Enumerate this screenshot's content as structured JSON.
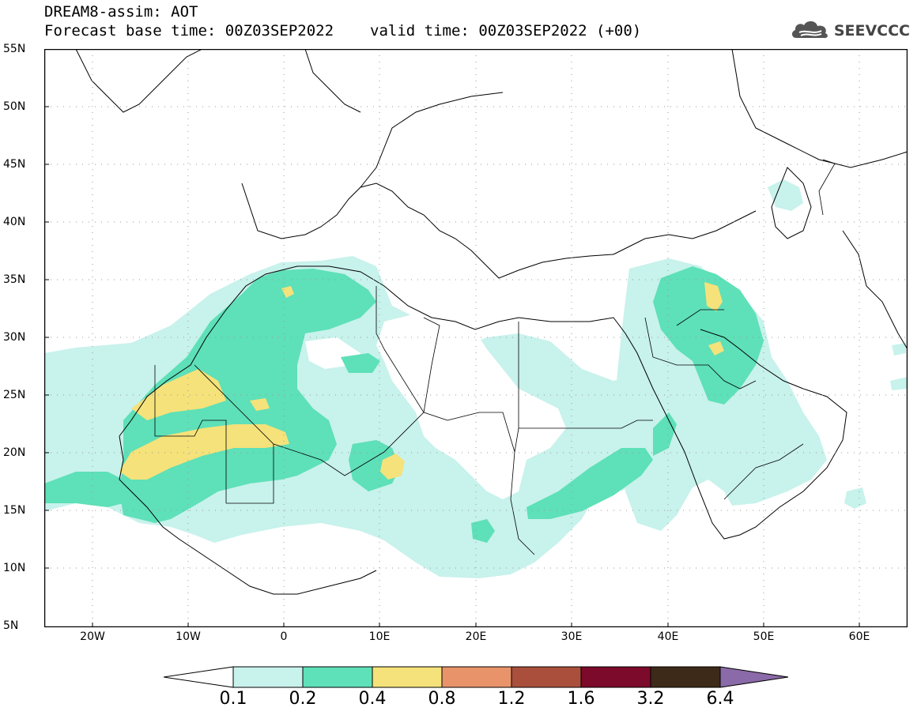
{
  "header": {
    "title": "DREAM8-assim: AOT",
    "base_time": "Forecast base time: 00Z03SEP2022",
    "valid_time": "valid time: 00Z03SEP2022 (+00)"
  },
  "logo": {
    "text": "SEEVCCC",
    "icon": "cloud-icon"
  },
  "axes": {
    "lat_ticks": [
      "55N",
      "50N",
      "45N",
      "40N",
      "35N",
      "30N",
      "25N",
      "20N",
      "15N",
      "10N",
      "5N"
    ],
    "lon_ticks": [
      "20W",
      "10W",
      "0",
      "10E",
      "20E",
      "30E",
      "40E",
      "50E",
      "60E"
    ],
    "lat_range": [
      5,
      55
    ],
    "lon_range": [
      -25,
      65
    ]
  },
  "colorbar": {
    "labels": [
      "0.1",
      "0.2",
      "0.4",
      "0.8",
      "1.2",
      "1.6",
      "3.2",
      "6.4"
    ],
    "colors": [
      "#ffffff",
      "#c8f2ec",
      "#5ee0b8",
      "#f5e27a",
      "#e8936a",
      "#a94f3c",
      "#7c0a2a",
      "#3d2a18",
      "#8a6aa8"
    ]
  }
}
